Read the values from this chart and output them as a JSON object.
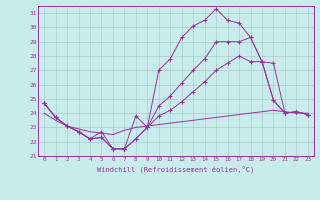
{
  "xlabel": "Windchill (Refroidissement éolien,°C)",
  "bg_color": "#c8ecec",
  "line_color": "#993399",
  "grid_color": "#aacccc",
  "xlim": [
    -0.5,
    23.5
  ],
  "ylim": [
    21,
    31.5
  ],
  "yticks": [
    21,
    22,
    23,
    24,
    25,
    26,
    27,
    28,
    29,
    30,
    31
  ],
  "xticks": [
    0,
    1,
    2,
    3,
    4,
    5,
    6,
    7,
    8,
    9,
    10,
    11,
    12,
    13,
    14,
    15,
    16,
    17,
    18,
    19,
    20,
    21,
    22,
    23
  ],
  "series": [
    {
      "y": [
        24.7,
        23.7,
        23.1,
        22.7,
        22.2,
        22.7,
        21.5,
        21.5,
        23.8,
        23.0,
        27.0,
        27.8,
        29.3,
        30.1,
        30.5,
        31.3,
        30.5,
        30.3,
        29.3,
        27.6,
        24.9,
        24.0,
        24.1,
        23.9
      ],
      "marker": true
    },
    {
      "y": [
        24.7,
        23.7,
        23.1,
        22.7,
        22.2,
        22.3,
        21.5,
        21.5,
        22.2,
        23.0,
        24.5,
        25.2,
        26.1,
        27.0,
        27.8,
        29.0,
        29.0,
        29.0,
        29.3,
        27.6,
        27.5,
        24.0,
        24.1,
        23.9
      ],
      "marker": true
    },
    {
      "y": [
        24.7,
        23.7,
        23.1,
        22.7,
        22.2,
        22.3,
        21.5,
        21.5,
        22.2,
        23.0,
        23.8,
        24.2,
        24.8,
        25.5,
        26.2,
        27.0,
        27.5,
        28.0,
        27.6,
        27.6,
        24.9,
        24.0,
        24.1,
        23.9
      ],
      "marker": true
    },
    {
      "y": [
        24.0,
        23.5,
        23.1,
        22.9,
        22.7,
        22.6,
        22.5,
        22.8,
        23.0,
        23.1,
        23.2,
        23.3,
        23.4,
        23.5,
        23.6,
        23.7,
        23.8,
        23.9,
        24.0,
        24.1,
        24.2,
        24.1,
        24.0,
        24.0
      ],
      "marker": false
    }
  ]
}
